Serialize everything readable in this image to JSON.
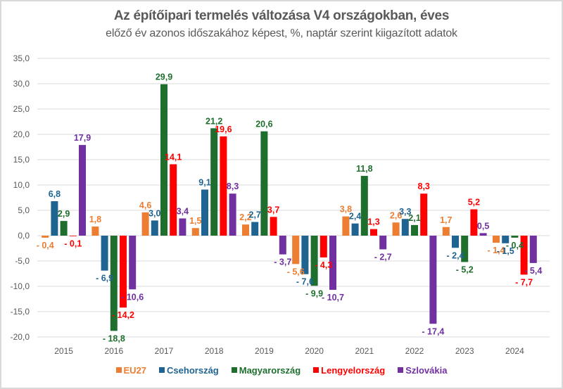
{
  "chart_data": {
    "type": "bar",
    "title": "Az építőipari termelés változása V4 országokban, éves",
    "subtitle": "előző év azonos időszakához képest, %, naptár szerint kiigazított adatok",
    "xlabel": "",
    "ylabel": "",
    "ylim": [
      -20,
      35
    ],
    "yticks": [
      35,
      30,
      25,
      20,
      15,
      10,
      5,
      0,
      -5,
      -10,
      -15,
      -20
    ],
    "ytick_labels": [
      "35,0",
      "30,0",
      "25,0",
      "20,0",
      "15,0",
      "10,0",
      "5,0",
      "0,0",
      "-5,0",
      "-10,0",
      "-15,0",
      "-20,0"
    ],
    "grid": true,
    "legend_position": "bottom",
    "categories": [
      "2015",
      "2016",
      "2017",
      "2018",
      "2019",
      "2020",
      "2021",
      "2022",
      "2023",
      "2024"
    ],
    "series": [
      {
        "name": "EU27",
        "color": "#ED7D31",
        "values": [
          -0.4,
          1.8,
          4.6,
          1.5,
          2.2,
          -5.6,
          3.8,
          2.6,
          1.7,
          -1.4
        ],
        "labels": [
          "- 0,4",
          "1,8",
          "4,6",
          "1,5",
          "2,2",
          "- 5,6",
          "3,8",
          "2,6",
          "1,7",
          "- 1,4"
        ]
      },
      {
        "name": "Csehország",
        "color": "#1F6390",
        "values": [
          6.8,
          -6.9,
          3.0,
          9.1,
          2.7,
          -7.6,
          2.4,
          3.3,
          -2.4,
          -1.5
        ],
        "labels": [
          "6,8",
          "- 6,9",
          "3,0",
          "9,1",
          "2,7",
          "- 7,6",
          "2,4",
          "3,3",
          "- 2,4",
          "- 1,5"
        ]
      },
      {
        "name": "Magyarország",
        "color": "#1E6F2E",
        "values": [
          2.9,
          -18.8,
          29.9,
          21.2,
          20.6,
          -9.9,
          11.8,
          2.1,
          -5.2,
          -0.4
        ],
        "labels": [
          "2,9",
          "- 18,8",
          "29,9",
          "21,2",
          "20,6",
          "- 9,9",
          "11,8",
          "2,1",
          "- 5,2",
          "- 0,4"
        ]
      },
      {
        "name": "Lengyelország",
        "color": "#FF0000",
        "values": [
          -0.1,
          -14.2,
          14.1,
          19.6,
          3.7,
          -4.3,
          1.3,
          8.3,
          5.2,
          -7.7
        ],
        "labels": [
          "- 0,1",
          "- 14,2",
          "14,1",
          "19,6",
          "3,7",
          "- 4,3",
          "1,3",
          "8,3",
          "5,2",
          "- 7,7"
        ]
      },
      {
        "name": "Szlovákia",
        "color": "#7030A0",
        "values": [
          17.9,
          -10.6,
          3.4,
          8.3,
          -3.7,
          -10.7,
          -2.7,
          -17.4,
          0.5,
          -5.4
        ],
        "labels": [
          "17,9",
          "- 10,6",
          "3,4",
          "8,3",
          "- 3,7",
          "- 10,7",
          "- 2,7",
          "- 17,4",
          "0,5",
          "- 5,4"
        ]
      }
    ]
  }
}
